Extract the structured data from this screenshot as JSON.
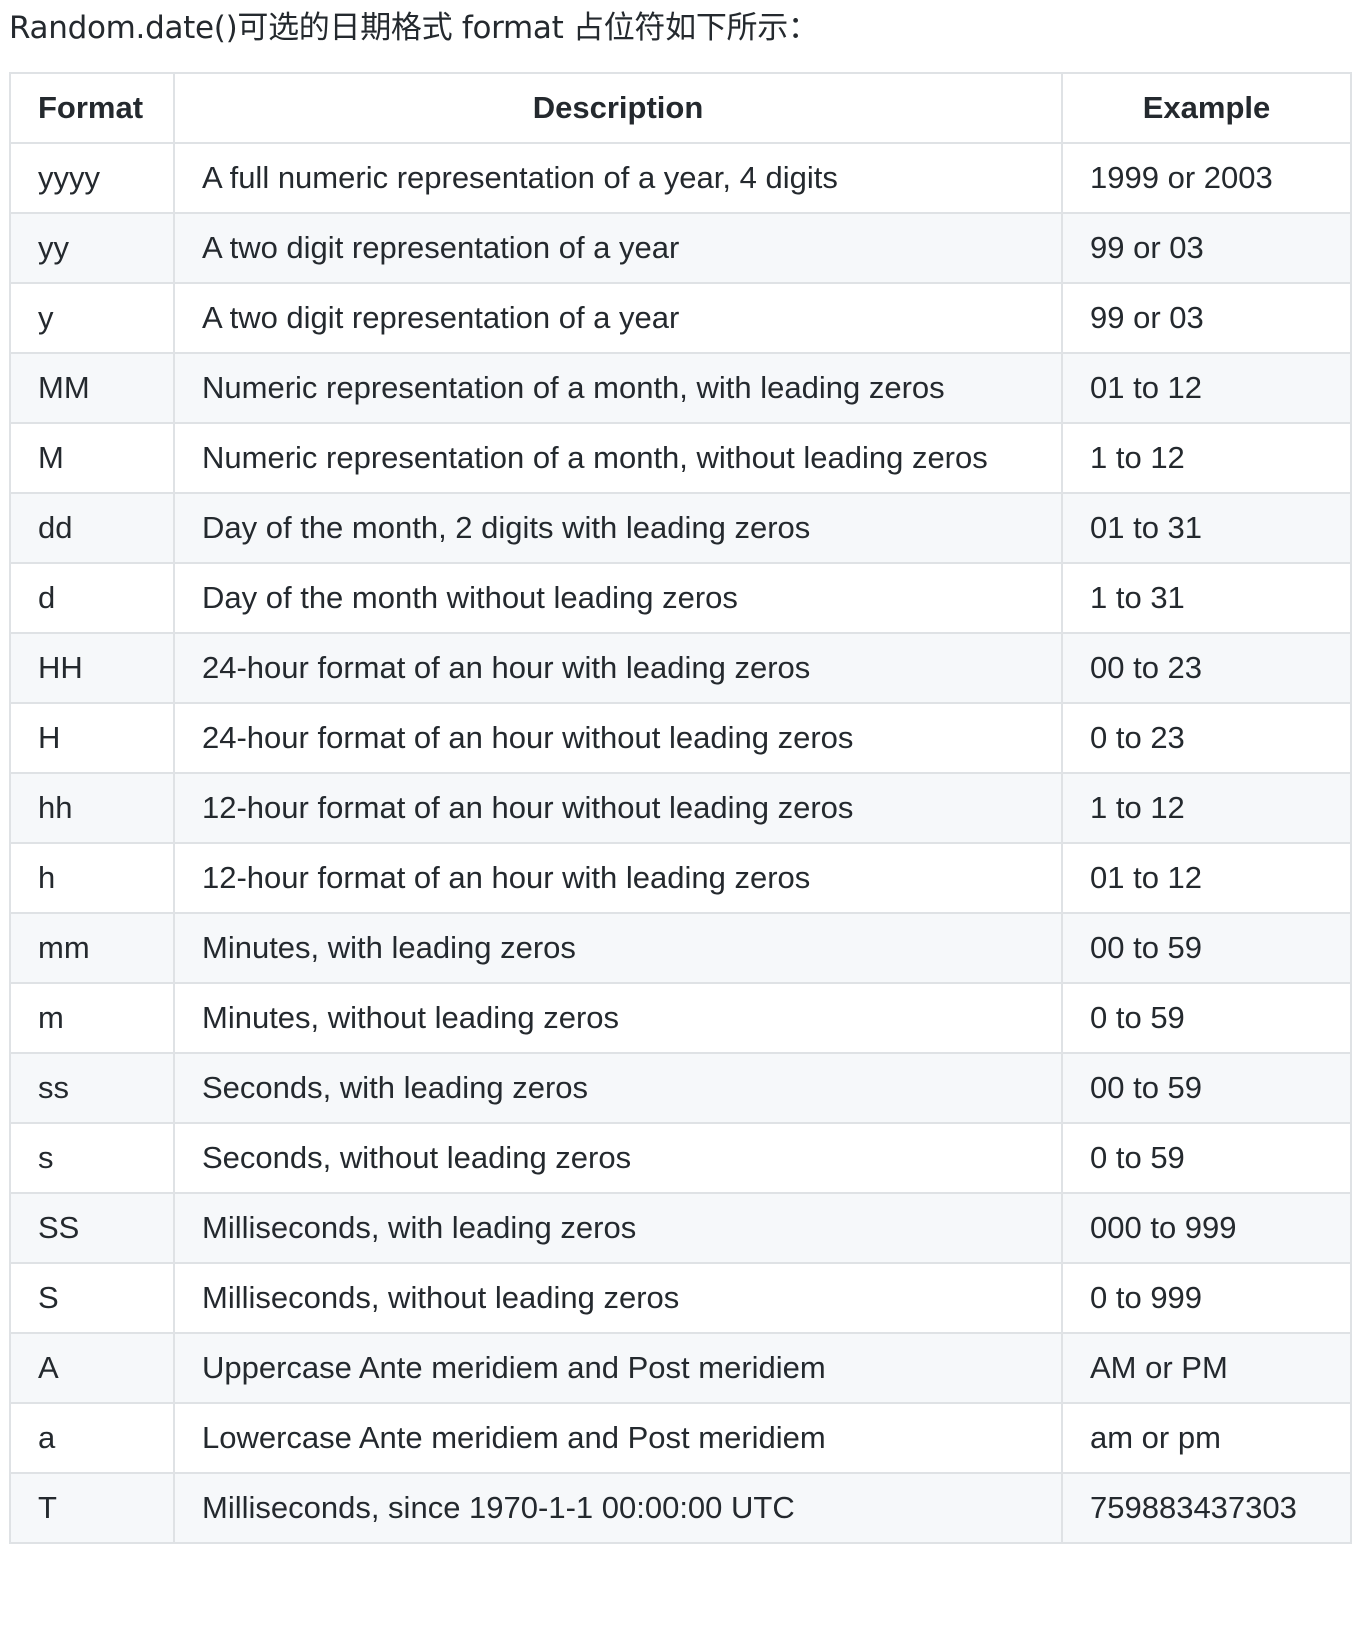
{
  "intro": "Random.date()可选的日期格式 format 占位符如下所示：",
  "table": {
    "headers": [
      "Format",
      "Description",
      "Example"
    ],
    "rows": [
      {
        "format": "yyyy",
        "description": "A full numeric representation of a year, 4 digits",
        "example": "1999 or 2003"
      },
      {
        "format": "yy",
        "description": "A two digit representation of a year",
        "example": "99 or 03"
      },
      {
        "format": "y",
        "description": "A two digit representation of a year",
        "example": "99 or 03"
      },
      {
        "format": "MM",
        "description": "Numeric representation of a month, with leading zeros",
        "example": "01 to 12"
      },
      {
        "format": "M",
        "description": "Numeric representation of a month, without leading zeros",
        "example": "1 to 12"
      },
      {
        "format": "dd",
        "description": "Day of the month, 2 digits with leading zeros",
        "example": "01 to 31"
      },
      {
        "format": "d",
        "description": "Day of the month without leading zeros",
        "example": "1 to 31"
      },
      {
        "format": "HH",
        "description": "24-hour format of an hour with leading zeros",
        "example": "00 to 23"
      },
      {
        "format": "H",
        "description": "24-hour format of an hour without leading zeros",
        "example": "0 to 23"
      },
      {
        "format": "hh",
        "description": "12-hour format of an hour without leading zeros",
        "example": "1 to 12"
      },
      {
        "format": "h",
        "description": "12-hour format of an hour with leading zeros",
        "example": "01 to 12"
      },
      {
        "format": "mm",
        "description": "Minutes, with leading zeros",
        "example": "00 to 59"
      },
      {
        "format": "m",
        "description": "Minutes, without leading zeros",
        "example": "0 to 59"
      },
      {
        "format": "ss",
        "description": "Seconds, with leading zeros",
        "example": "00 to 59"
      },
      {
        "format": "s",
        "description": "Seconds, without leading zeros",
        "example": "0 to 59"
      },
      {
        "format": "SS",
        "description": "Milliseconds, with leading zeros",
        "example": "000 to 999"
      },
      {
        "format": "S",
        "description": "Milliseconds, without leading zeros",
        "example": "0 to 999"
      },
      {
        "format": "A",
        "description": "Uppercase Ante meridiem and Post meridiem",
        "example": "AM or PM"
      },
      {
        "format": "a",
        "description": "Lowercase Ante meridiem and Post meridiem",
        "example": "am or pm"
      },
      {
        "format": "T",
        "description": "Milliseconds, since 1970-1-1 00:00:00 UTC",
        "example": "759883437303"
      }
    ]
  },
  "colors": {
    "text": "#24292e",
    "border": "#dfe2e5",
    "stripe": "#f6f8fa"
  }
}
